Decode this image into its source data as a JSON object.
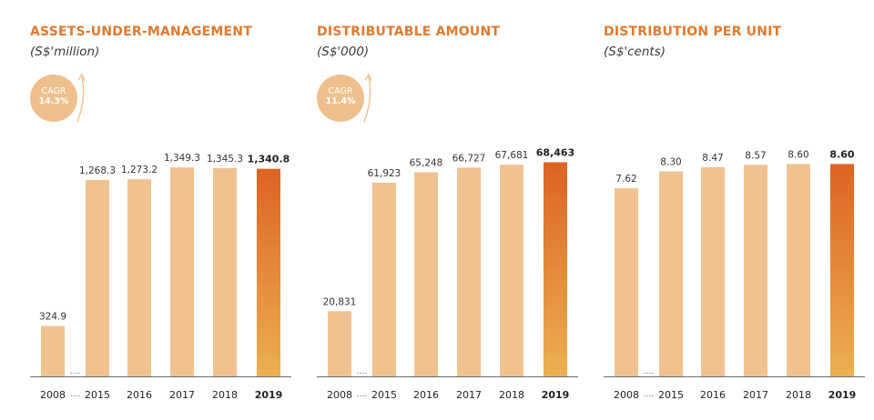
{
  "colors": {
    "title": "#e07a2e",
    "bar": "#f0c290",
    "highlight_top": "#dd6322",
    "highlight_bottom": "#ecb04f",
    "axis": "#6b6b6b",
    "cagr_bg": "#eec08d"
  },
  "chart_data": [
    {
      "type": "bar",
      "title": "ASSETS-UNDER-MANAGEMENT",
      "subtitle": "(S$'million)",
      "cagr": {
        "label": "CAGR",
        "value": "14.3%"
      },
      "categories": [
        "2008",
        "2015",
        "2016",
        "2017",
        "2018",
        "2019"
      ],
      "values": [
        324.9,
        1268.3,
        1273.2,
        1349.3,
        1345.3,
        1340.8
      ],
      "value_labels": [
        "324.9",
        "1,268.3",
        "1,273.2",
        "1,349.3",
        "1,345.3",
        "1,340.8"
      ],
      "highlight_index": 5,
      "axis_break": "....",
      "ylim": [
        0,
        1515
      ]
    },
    {
      "type": "bar",
      "title": "DISTRIBUTABLE AMOUNT",
      "subtitle": "(S$'000)",
      "cagr": {
        "label": "CAGR",
        "value": "11.4%"
      },
      "categories": [
        "2008",
        "2015",
        "2016",
        "2017",
        "2018",
        "2019"
      ],
      "values": [
        20831,
        61923,
        65248,
        66727,
        67681,
        68463
      ],
      "value_labels": [
        "20,831",
        "61,923",
        "65,248",
        "66,727",
        "67,681",
        "68,463"
      ],
      "highlight_index": 5,
      "axis_break": "....",
      "ylim": [
        0,
        75000
      ]
    },
    {
      "type": "bar",
      "title": "DISTRIBUTION PER UNIT",
      "subtitle": "(S$'cents)",
      "categories": [
        "2008",
        "2015",
        "2016",
        "2017",
        "2018",
        "2019"
      ],
      "values": [
        7.62,
        8.3,
        8.47,
        8.57,
        8.6,
        8.6
      ],
      "value_labels": [
        "7.62",
        "8.30",
        "8.47",
        "8.57",
        "8.60",
        "8.60"
      ],
      "highlight_index": 5,
      "axis_break": "....",
      "ylim": [
        0,
        9.5
      ]
    }
  ]
}
